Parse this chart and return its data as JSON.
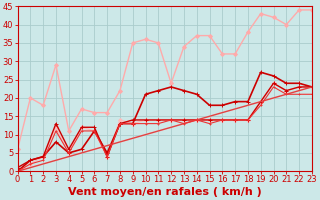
{
  "background_color": "#cce8e8",
  "grid_color": "#aacccc",
  "xlabel": "Vent moyen/en rafales ( km/h )",
  "xlim": [
    0,
    23
  ],
  "ylim": [
    0,
    45
  ],
  "xticks": [
    0,
    1,
    2,
    3,
    4,
    5,
    6,
    7,
    8,
    9,
    10,
    11,
    12,
    13,
    14,
    15,
    16,
    17,
    18,
    19,
    20,
    21,
    22,
    23
  ],
  "yticks": [
    0,
    5,
    10,
    15,
    20,
    25,
    30,
    35,
    40,
    45
  ],
  "series": [
    {
      "x": [
        0,
        1,
        2,
        3,
        4,
        5,
        6,
        7,
        8,
        9,
        10,
        11,
        12,
        13,
        14,
        15,
        16,
        17,
        18,
        19,
        20,
        21,
        22,
        23
      ],
      "y": [
        6,
        20,
        18,
        29,
        11,
        17,
        16,
        16,
        22,
        35,
        36,
        35,
        24,
        34,
        37,
        37,
        32,
        32,
        38,
        43,
        42,
        40,
        44,
        44
      ],
      "color": "#ffaaaa",
      "lw": 1.0,
      "marker": "D",
      "ms": 2.0
    },
    {
      "x": [
        0,
        1,
        2,
        3,
        4,
        5,
        6,
        7,
        8,
        9,
        10,
        11,
        12,
        13,
        14,
        15,
        16,
        17,
        18,
        19,
        20,
        21,
        22,
        23
      ],
      "y": [
        0,
        2,
        4,
        12,
        5,
        12,
        11,
        4,
        14,
        13,
        14,
        14,
        14,
        14,
        14,
        14,
        14,
        14,
        14,
        19,
        24,
        22,
        23,
        23
      ],
      "color": "#ffbbbb",
      "lw": 1.0,
      "marker": "D",
      "ms": 2.0
    },
    {
      "x": [
        0,
        23
      ],
      "y": [
        0,
        23
      ],
      "color": "#ffcccc",
      "lw": 1.0,
      "marker": null,
      "ms": 0
    },
    {
      "x": [
        0,
        1,
        2,
        3,
        4,
        5,
        6,
        7,
        8,
        9,
        10,
        11,
        12,
        13,
        14,
        15,
        16,
        17,
        18,
        19,
        20,
        21,
        22,
        23
      ],
      "y": [
        0,
        3,
        4,
        8,
        5,
        6,
        11,
        5,
        13,
        13,
        21,
        22,
        23,
        22,
        21,
        18,
        18,
        19,
        19,
        27,
        26,
        24,
        24,
        23
      ],
      "color": "#cc0000",
      "lw": 1.2,
      "marker": "+",
      "ms": 3.0
    },
    {
      "x": [
        0,
        1,
        2,
        3,
        4,
        5,
        6,
        7,
        8,
        9,
        10,
        11,
        12,
        13,
        14,
        15,
        16,
        17,
        18,
        19,
        20,
        21,
        22,
        23
      ],
      "y": [
        1,
        3,
        4,
        13,
        6,
        12,
        12,
        4,
        13,
        14,
        14,
        14,
        14,
        14,
        14,
        14,
        14,
        14,
        14,
        19,
        24,
        22,
        23,
        23
      ],
      "color": "#cc0000",
      "lw": 1.0,
      "marker": "+",
      "ms": 2.5
    },
    {
      "x": [
        0,
        23
      ],
      "y": [
        0,
        23
      ],
      "color": "#dd4444",
      "lw": 1.0,
      "marker": null,
      "ms": 0
    },
    {
      "x": [
        0,
        1,
        2,
        3,
        4,
        5,
        6,
        7,
        8,
        9,
        10,
        11,
        12,
        13,
        14,
        15,
        16,
        17,
        18,
        19,
        20,
        21,
        22,
        23
      ],
      "y": [
        0,
        2,
        3,
        11,
        5,
        11,
        11,
        4,
        13,
        13,
        13,
        13,
        14,
        13,
        14,
        13,
        14,
        14,
        14,
        18,
        23,
        21,
        21,
        21
      ],
      "color": "#ee3333",
      "lw": 0.8,
      "marker": "+",
      "ms": 2.0
    }
  ],
  "xlabel_color": "#cc0000",
  "xlabel_fontsize": 8,
  "tick_color": "#cc0000",
  "tick_fontsize": 6,
  "spine_color": "#cc0000"
}
